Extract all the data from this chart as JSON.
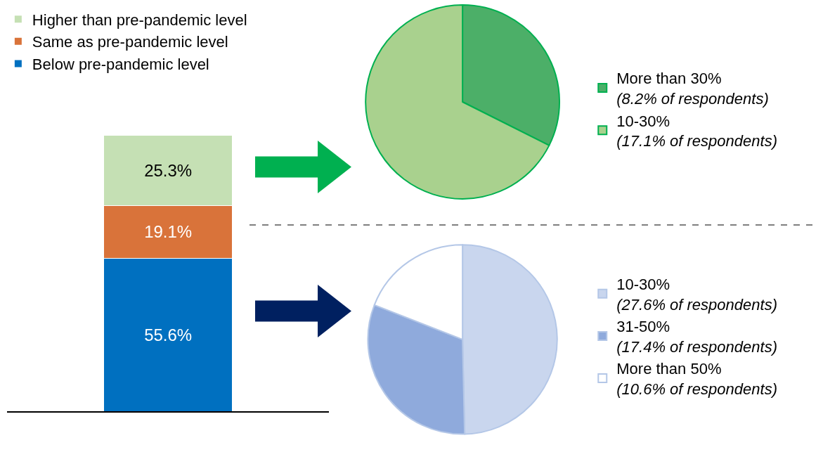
{
  "chart_data": [
    {
      "type": "bar",
      "stacked": true,
      "categories": [
        null
      ],
      "legend": "top left",
      "series": [
        {
          "name": "Below pre-pandemic level",
          "color": "#0070c0",
          "values": [
            55.6
          ],
          "value_labels": [
            "55.6%"
          ]
        },
        {
          "name": "Same as pre-pandemic level",
          "color": "#d9733a",
          "values": [
            19.1
          ],
          "value_labels": [
            "19.1%"
          ]
        },
        {
          "name": "Higher than pre-pandemic level",
          "color": "#c5e0b4",
          "values": [
            25.3
          ],
          "value_labels": [
            "25.3%"
          ]
        }
      ]
    },
    {
      "type": "pie",
      "legend": "right",
      "categories": [
        "More than 30%",
        "10-30%"
      ],
      "values": [
        8.2,
        17.1
      ],
      "value_labels": [
        "(8.2% of respondents)",
        "(17.1% of respondents)"
      ],
      "colors": [
        "#4caf68",
        "#a9d18e"
      ]
    },
    {
      "type": "pie",
      "legend": "right",
      "categories": [
        "10-30%",
        "31-50%",
        "More than 50%"
      ],
      "values": [
        27.6,
        17.4,
        10.6
      ],
      "value_labels": [
        "(27.6% of respondents)",
        "(17.4% of respondents)",
        "(10.6% of respondents)"
      ],
      "colors": [
        "#c9d6ee",
        "#8faadc",
        "#ffffff"
      ]
    }
  ]
}
